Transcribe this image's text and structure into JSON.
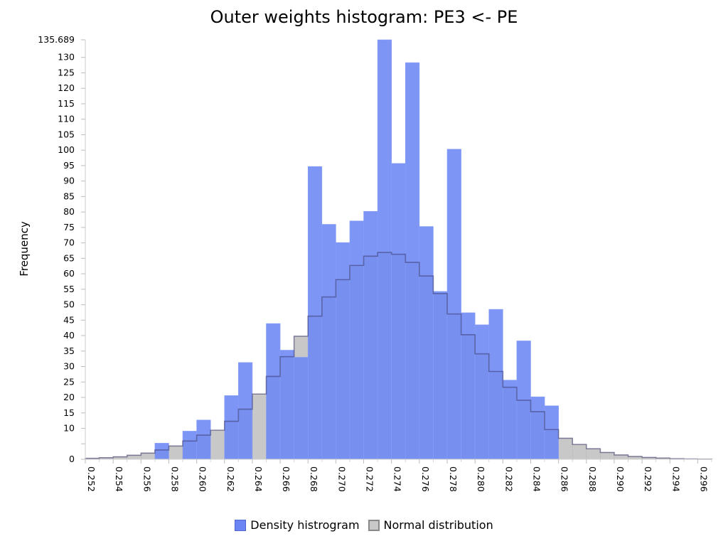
{
  "chart_data": {
    "type": "bar",
    "title": "Outer weights histogram: PE3 <- PE",
    "xlabel": "",
    "ylabel": "Frequency",
    "bin_width": 0.001,
    "xlim": [
      0.252,
      0.297
    ],
    "ylim": [
      0,
      135.689
    ],
    "y_ticks": [
      "0",
      "10",
      "15",
      "20",
      "25",
      "30",
      "35",
      "40",
      "45",
      "50",
      "55",
      "60",
      "65",
      "70",
      "75",
      "80",
      "85",
      "90",
      "95",
      "100",
      "105",
      "110",
      "115",
      "120",
      "125",
      "130",
      "135.689"
    ],
    "x_ticks": [
      "0.252",
      "0.254",
      "0.256",
      "0.258",
      "0.260",
      "0.262",
      "0.264",
      "0.266",
      "0.268",
      "0.270",
      "0.272",
      "0.274",
      "0.276",
      "0.278",
      "0.280",
      "0.282",
      "0.284",
      "0.286",
      "0.288",
      "0.290",
      "0.292",
      "0.294",
      "0.296"
    ],
    "series": [
      {
        "name": "Density histrogram",
        "color": "#6b86f4",
        "bin_starts": [
          0.257,
          0.259,
          0.26,
          0.262,
          0.263,
          0.265,
          0.266,
          0.267,
          0.268,
          0.269,
          0.27,
          0.271,
          0.272,
          0.273,
          0.274,
          0.275,
          0.276,
          0.277,
          0.278,
          0.279,
          0.28,
          0.281,
          0.282,
          0.283,
          0.284,
          0.285
        ],
        "values": [
          5.2,
          9.1,
          12.7,
          20.6,
          31.3,
          43.9,
          35.3,
          33.0,
          94.7,
          76.0,
          70.1,
          77.1,
          80.2,
          135.689,
          95.7,
          128.3,
          75.3,
          54.3,
          100.3,
          47.4,
          43.5,
          48.5,
          25.6,
          38.3,
          20.2,
          17.3
        ]
      },
      {
        "name": "Normal distribution",
        "color": "#c8c8c8",
        "bin_starts": [
          0.252,
          0.253,
          0.254,
          0.255,
          0.256,
          0.257,
          0.258,
          0.259,
          0.26,
          0.261,
          0.262,
          0.263,
          0.264,
          0.265,
          0.266,
          0.267,
          0.268,
          0.269,
          0.27,
          0.271,
          0.272,
          0.273,
          0.274,
          0.275,
          0.276,
          0.277,
          0.278,
          0.279,
          0.28,
          0.281,
          0.282,
          0.283,
          0.284,
          0.285,
          0.286,
          0.287,
          0.288,
          0.289,
          0.29,
          0.291,
          0.292,
          0.293,
          0.294,
          0.295,
          0.296
        ],
        "values": [
          0.3,
          0.5,
          0.8,
          1.3,
          2.0,
          3.0,
          4.3,
          5.9,
          7.8,
          9.4,
          12.3,
          16.2,
          21.1,
          26.8,
          33.2,
          39.8,
          46.3,
          52.5,
          58.1,
          62.7,
          65.7,
          66.9,
          66.3,
          63.7,
          59.3,
          53.6,
          47.0,
          40.3,
          34.1,
          28.4,
          23.3,
          19.1,
          15.4,
          9.6,
          6.8,
          4.8,
          3.4,
          2.2,
          1.4,
          0.9,
          0.6,
          0.4,
          0.2,
          0.1,
          0.05
        ]
      }
    ],
    "legend": {
      "position": "bottom"
    },
    "grid": false
  }
}
